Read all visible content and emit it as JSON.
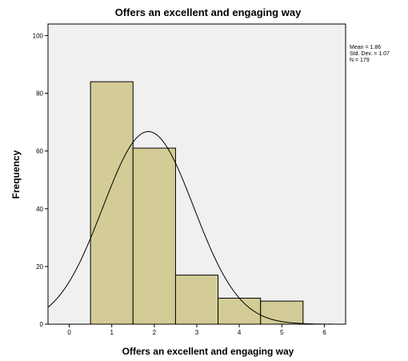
{
  "chart_data": {
    "type": "bar",
    "title": "Offers an excellent and engaging way",
    "xlabel": "Offers an excellent and engaging way",
    "ylabel": "Frequency",
    "x_ticks": [
      "0",
      "1",
      "2",
      "3",
      "4",
      "5",
      "6"
    ],
    "y_ticks": [
      "0",
      "20",
      "40",
      "60",
      "80",
      "100"
    ],
    "xlim": [
      -0.5,
      6.5
    ],
    "ylim": [
      0,
      104
    ],
    "bins": [
      {
        "center": 1,
        "value": 84
      },
      {
        "center": 2,
        "value": 61
      },
      {
        "center": 3,
        "value": 17
      },
      {
        "center": 4,
        "value": 9
      },
      {
        "center": 5,
        "value": 8
      }
    ],
    "normal_curve": {
      "mean": 1.86,
      "sd": 1.07,
      "n": 179,
      "bin_width": 1
    },
    "stats": [
      "Mean = 1.86",
      "Std. Dev. = 1.07",
      "N = 179"
    ],
    "grid": false,
    "colors": {
      "bar_fill": "#d4cc96",
      "bar_stroke": "#000000",
      "plot_background": "#f0f0f0",
      "curve": "#000000"
    }
  }
}
